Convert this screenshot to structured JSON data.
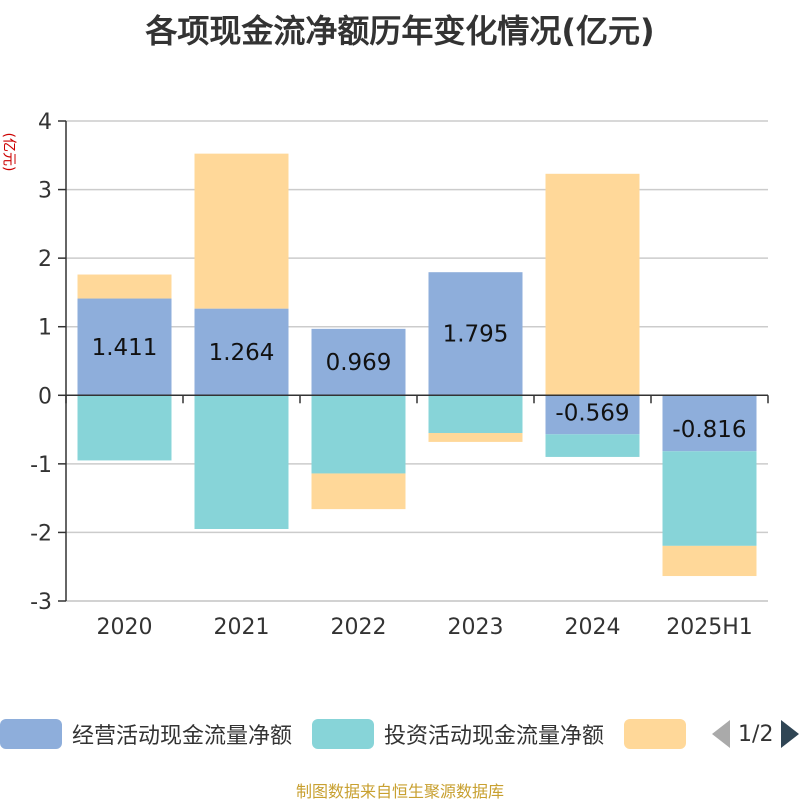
{
  "chart_data": {
    "type": "bar",
    "stacked": true,
    "title": "各项现金流净额历年变化情况(亿元)",
    "unit_label": "(亿元)",
    "categories": [
      "2020",
      "2021",
      "2022",
      "2023",
      "2024",
      "2025H1"
    ],
    "ylim": [
      -3,
      4
    ],
    "yticks": [
      -3,
      -2,
      -1,
      0,
      1,
      2,
      3,
      4
    ],
    "grid": true,
    "legend_position": "bottom",
    "series": [
      {
        "name": "经营活动现金流量净额",
        "color": "#8eaedb",
        "values": [
          1.411,
          1.264,
          0.969,
          1.795,
          -0.569,
          -0.816
        ],
        "data_labels": [
          "1.411",
          "1.264",
          "0.969",
          "1.795",
          "-0.569",
          "-0.816"
        ]
      },
      {
        "name": "投资活动现金流量净额",
        "color": "#87d4d8",
        "values": [
          -0.95,
          -1.95,
          -1.14,
          -0.55,
          -0.33,
          -1.38
        ]
      },
      {
        "name": "",
        "color": "#ffd899",
        "values": [
          0.35,
          2.26,
          -0.52,
          -0.13,
          3.23,
          -0.44
        ]
      }
    ]
  },
  "legend": {
    "page_indicator": "1/2",
    "prev_icon": "chevron-left-icon",
    "next_icon": "chevron-right-icon"
  },
  "source_note": "制图数据来自恒生聚源数据库"
}
